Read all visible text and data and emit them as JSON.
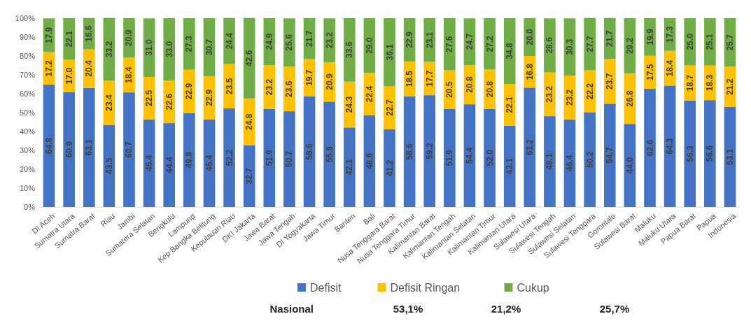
{
  "chart_data": {
    "type": "bar",
    "stacked": true,
    "categories": [
      "DI Aceh",
      "Sumatra Utara",
      "Sumatra Barat",
      "Riau",
      "Jambi",
      "Sumatera Selatan",
      "Bengkulu",
      "Lampung",
      "Kep Bangka Belitung",
      "Kepulauan Riau",
      "DKI Jakarta",
      "Jawa Barat",
      "Jawa Tengah",
      "DI Yogyakarta",
      "Jawa Timur",
      "Banten",
      "Bali",
      "Nusa Tenggara Barat",
      "Nusa Tenggara Timur",
      "Kalimantan Barat",
      "Kalimantan Tengah",
      "Kalimantan Selatan",
      "Kalimantan Timur",
      "Kalimantan Utara",
      "Sulawesi Utara",
      "Sulawesi Tengah",
      "Sulawesi Selatan",
      "Sulawesi Tenggara",
      "Gorontalo",
      "Sulawesi Barat",
      "Maluku",
      "Maluku Utara",
      "Papua Barat",
      "Papua",
      "Indonesia"
    ],
    "series": [
      {
        "name": "Defisit",
        "color": "#4472c4",
        "values": [
          64.8,
          60.9,
          63.1,
          43.5,
          60.7,
          46.4,
          44.4,
          49.8,
          46.4,
          52.2,
          32.7,
          51.9,
          50.7,
          58.6,
          55.8,
          42.1,
          48.6,
          41.2,
          58.6,
          59.2,
          51.9,
          54.4,
          52.0,
          43.1,
          63.2,
          48.1,
          46.4,
          50.2,
          54.7,
          44.0,
          62.6,
          64.3,
          56.3,
          56.6,
          53.1
        ],
        "value_labels": [
          "64.8",
          "60.9",
          "63.1",
          "43.5",
          "60.7",
          "46.4",
          "44.4",
          "49.8",
          "46.4",
          "52.2",
          "32.7",
          "51.9",
          "50.7",
          "58.6",
          "55.8",
          "42.1",
          "48.6",
          "41.2",
          "58.6",
          "59.2",
          "51.9",
          "54.4",
          "52.0",
          "43.1",
          "63.2",
          "48.1",
          "46.4",
          "50.2",
          "54.7",
          "44.0",
          "62.6",
          "64.3",
          "56.3",
          "56.6",
          "53.1"
        ]
      },
      {
        "name": "Defisit Ringan",
        "color": "#ffc000",
        "values": [
          17.2,
          17.0,
          20.4,
          23.4,
          18.4,
          22.5,
          22.6,
          22.9,
          22.9,
          23.5,
          24.8,
          23.2,
          23.6,
          19.7,
          20.9,
          24.3,
          22.4,
          22.7,
          18.5,
          17.7,
          20.5,
          20.8,
          20.8,
          22.1,
          16.8,
          23.2,
          23.2,
          22.2,
          23.7,
          26.8,
          17.5,
          18.4,
          18.7,
          18.3,
          21.2
        ],
        "value_labels": [
          "17.2",
          "17.0",
          "20.4",
          "23.4",
          "18.4",
          "22.5",
          "22.6",
          "22.9",
          "22.9",
          "23.5",
          "24.8",
          "23.2",
          "23.6",
          "19.7",
          "20.9",
          "24.3",
          "22.4",
          "22.7",
          "18.5",
          "17.7",
          "20.5",
          "20.8",
          "20.8",
          "22.1",
          "16.8",
          "23.2",
          "23.2",
          "22.2",
          "23.7",
          "26.8",
          "17.5",
          "18.4",
          "18.7",
          "18.3",
          "21.2"
        ]
      },
      {
        "name": "Cukup",
        "color": "#70ad47",
        "values": [
          17.9,
          22.1,
          16.6,
          33.2,
          20.9,
          31.0,
          33.0,
          27.3,
          30.7,
          24.4,
          42.6,
          24.9,
          25.6,
          21.7,
          23.2,
          33.6,
          29.0,
          36.1,
          22.9,
          23.1,
          27.6,
          24.7,
          27.2,
          34.8,
          20.0,
          28.6,
          30.3,
          27.7,
          21.7,
          29.2,
          19.9,
          17.3,
          25.0,
          25.1,
          25.7
        ],
        "value_labels": [
          "17.9",
          "22.1",
          "16.6",
          "33.2",
          "20.9",
          "31.0",
          "33.0",
          "27.3",
          "30.7",
          "24.4",
          "42.6",
          "24.9",
          "25.6",
          "21.7",
          "23.2",
          "33.6",
          "29.0",
          "36.1",
          "22.9",
          "23.1",
          "27.6",
          "24.7",
          "27.2",
          "34.8",
          "20.0",
          "28.6",
          "30.3",
          "27.7",
          "21.7",
          "29.2",
          "19.9",
          "17.3",
          "25.0",
          "25.1",
          "25.7"
        ]
      }
    ],
    "ylim": [
      0,
      100
    ],
    "yticks": [
      {
        "value": 0,
        "label": "0%"
      },
      {
        "value": 10,
        "label": "10%"
      },
      {
        "value": 20,
        "label": "20%"
      },
      {
        "value": 30,
        "label": "30%"
      },
      {
        "value": 40,
        "label": "40%"
      },
      {
        "value": 50,
        "label": "50%"
      },
      {
        "value": 60,
        "label": "60%"
      },
      {
        "value": 70,
        "label": "70%"
      },
      {
        "value": 80,
        "label": "80%"
      },
      {
        "value": 90,
        "label": "90%"
      },
      {
        "value": 100,
        "label": "100%"
      }
    ],
    "legend": "bottom",
    "annotations": [
      "Nasional",
      "53,1%",
      "21,2%",
      "25,7%"
    ]
  }
}
